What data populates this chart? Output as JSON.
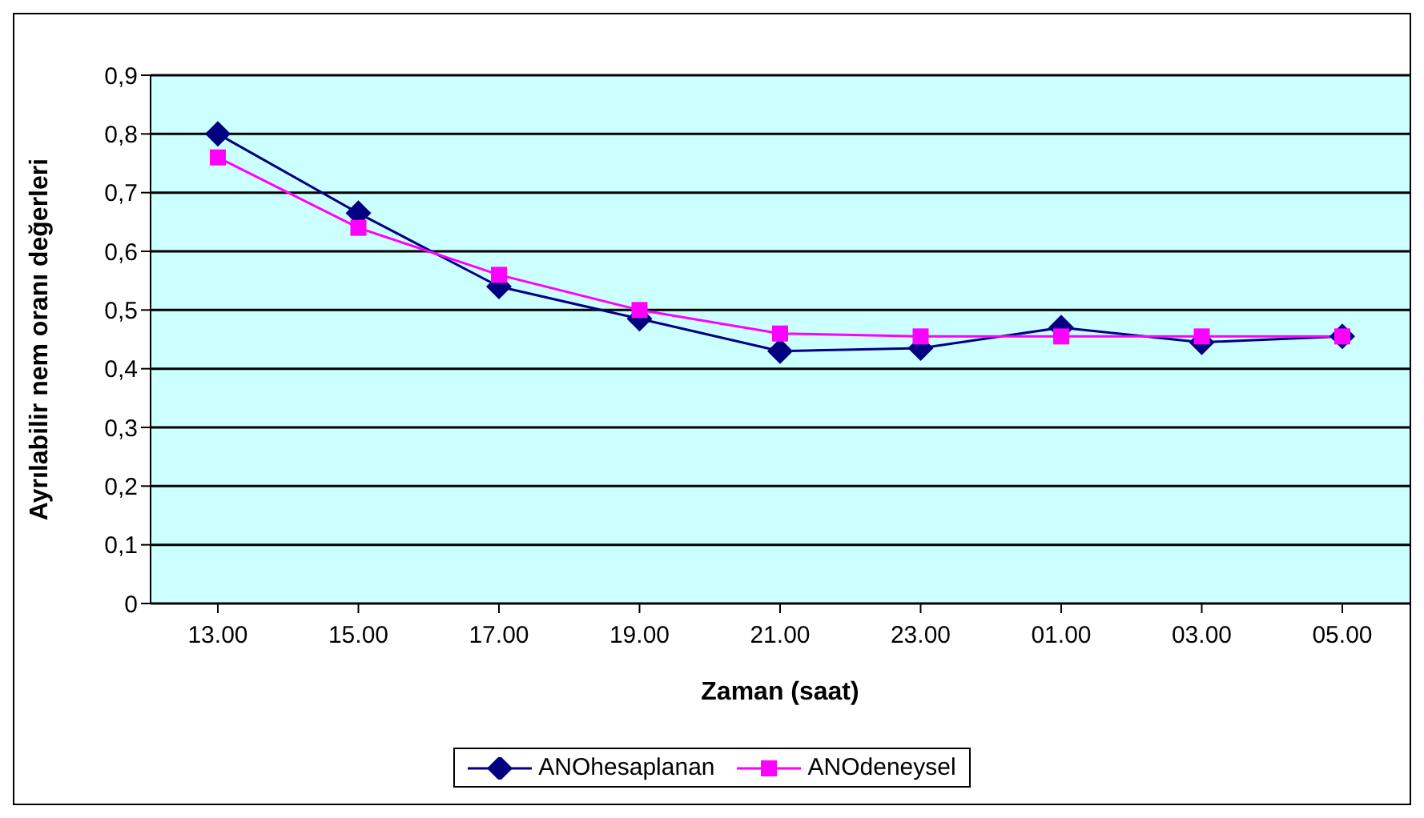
{
  "chart_data": {
    "type": "line",
    "xlabel": "Zaman (saat)",
    "ylabel": "Ayrılabilir nem oranı değerleri",
    "categories": [
      "13.00",
      "15.00",
      "17.00",
      "19.00",
      "21.00",
      "23.00",
      "01.00",
      "03.00",
      "05.00"
    ],
    "series": [
      {
        "name": "ANOhesaplanan",
        "color": "#000080",
        "marker": "diamond",
        "values": [
          0.8,
          0.665,
          0.54,
          0.485,
          0.43,
          0.435,
          0.47,
          0.445,
          0.455
        ]
      },
      {
        "name": "ANOdeneysel",
        "color": "#ff00ff",
        "marker": "square",
        "values": [
          0.76,
          0.64,
          0.56,
          0.5,
          0.46,
          0.455,
          0.455,
          0.455,
          0.455
        ]
      }
    ],
    "ylim": [
      0,
      0.9
    ],
    "yticks": [
      {
        "value": 0,
        "label": "0"
      },
      {
        "value": 0.1,
        "label": "0,1"
      },
      {
        "value": 0.2,
        "label": "0,2"
      },
      {
        "value": 0.3,
        "label": "0,3"
      },
      {
        "value": 0.4,
        "label": "0,4"
      },
      {
        "value": 0.5,
        "label": "0,5"
      },
      {
        "value": 0.6,
        "label": "0,6"
      },
      {
        "value": 0.7,
        "label": "0,7"
      },
      {
        "value": 0.8,
        "label": "0,8"
      },
      {
        "value": 0.9,
        "label": "0,9"
      }
    ],
    "grid": "y",
    "legend": "bottom"
  }
}
